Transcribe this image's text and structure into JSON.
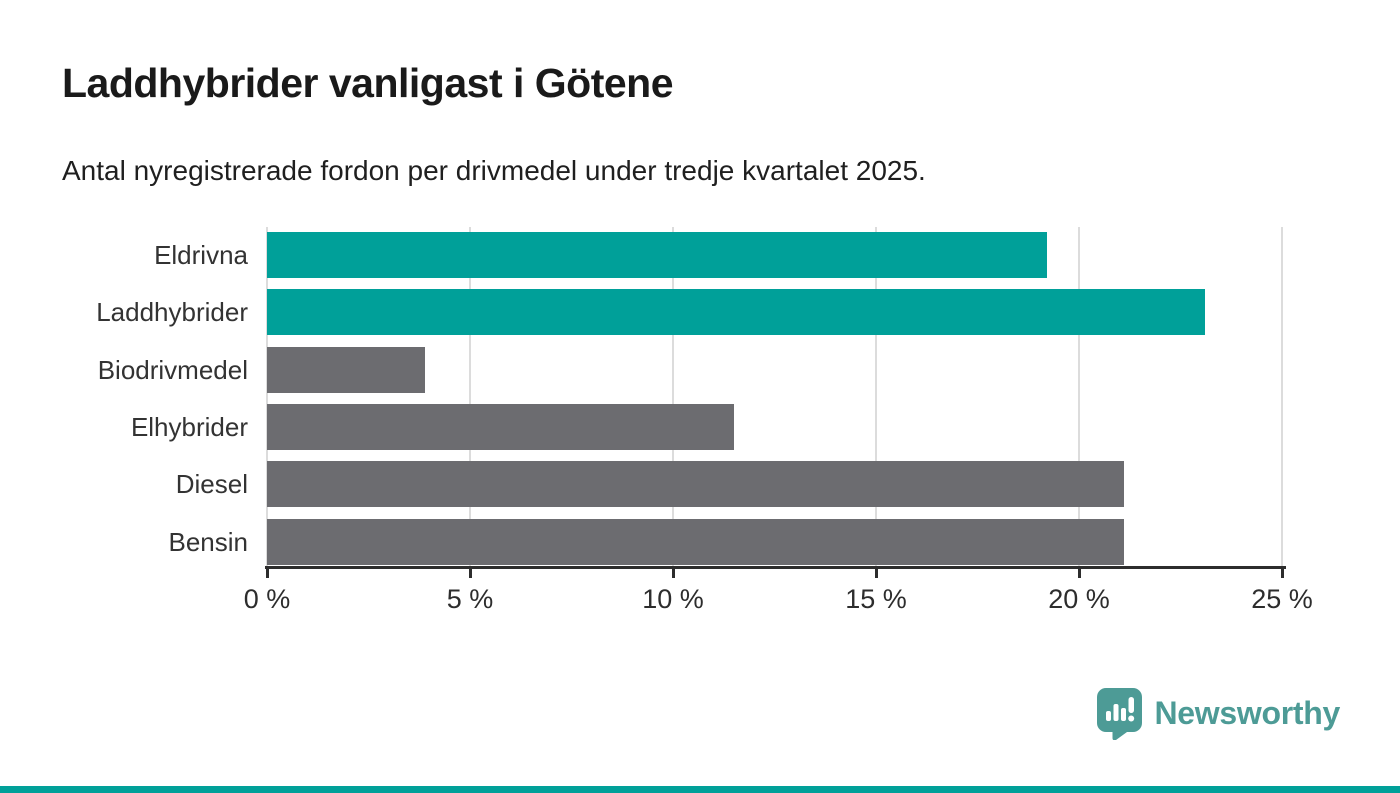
{
  "header": {
    "title": "Laddhybrider vanligast i Götene",
    "subtitle": "Antal nyregistrerade fordon per drivmedel under tredje kvartalet 2025."
  },
  "chart_data": {
    "type": "bar",
    "orientation": "horizontal",
    "title": "Laddhybrider vanligast i Götene",
    "subtitle": "Antal nyregistrerade fordon per drivmedel under tredje kvartalet 2025.",
    "categories": [
      "Eldrivna",
      "Laddhybrider",
      "Biodrivmedel",
      "Elhybrider",
      "Diesel",
      "Bensin"
    ],
    "values": [
      19.2,
      23.1,
      3.9,
      11.5,
      21.1,
      21.1
    ],
    "unit": "%",
    "xlim": [
      0,
      25
    ],
    "x_tick_values": [
      0,
      5,
      10,
      15,
      20,
      25
    ],
    "x_tick_labels": [
      "0 %",
      "5 %",
      "10 %",
      "15 %",
      "20 %",
      "25 %"
    ],
    "grid": true,
    "legend": "none",
    "bar_colors": [
      "#00a099",
      "#00a099",
      "#6c6c70",
      "#6c6c70",
      "#6c6c70",
      "#6c6c70"
    ],
    "colors": {
      "highlight": "#00a099",
      "default": "#6c6c70",
      "gridline": "#dcdcdc",
      "axis": "#2d2d2d",
      "label": "#333333"
    }
  },
  "branding": {
    "logo_text": "Newsworthy",
    "logo_color": "#4d9b96",
    "footer_stripe_color": "#00a099"
  }
}
